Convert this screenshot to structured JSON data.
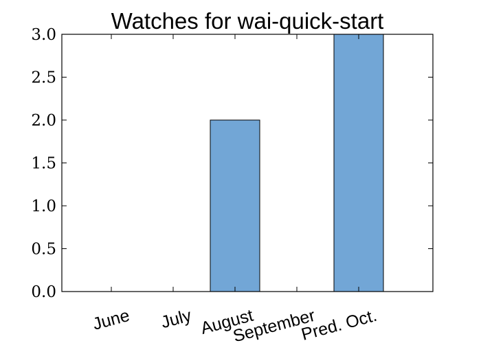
{
  "chart_data": {
    "type": "bar",
    "title": "Watches for wai-quick-start",
    "xlabel": "",
    "ylabel": "",
    "categories": [
      "June",
      "July",
      "August",
      "September",
      "Pred. Oct."
    ],
    "values": [
      0,
      0,
      2,
      0,
      3
    ],
    "ylim": [
      0,
      3.0
    ],
    "yticks": [
      "0.0",
      "0.5",
      "1.0",
      "1.5",
      "2.0",
      "2.5",
      "3.0"
    ],
    "grid": false,
    "legend": "none",
    "bar_color": "#72a6d6",
    "bar_edge_color": "#000000"
  }
}
